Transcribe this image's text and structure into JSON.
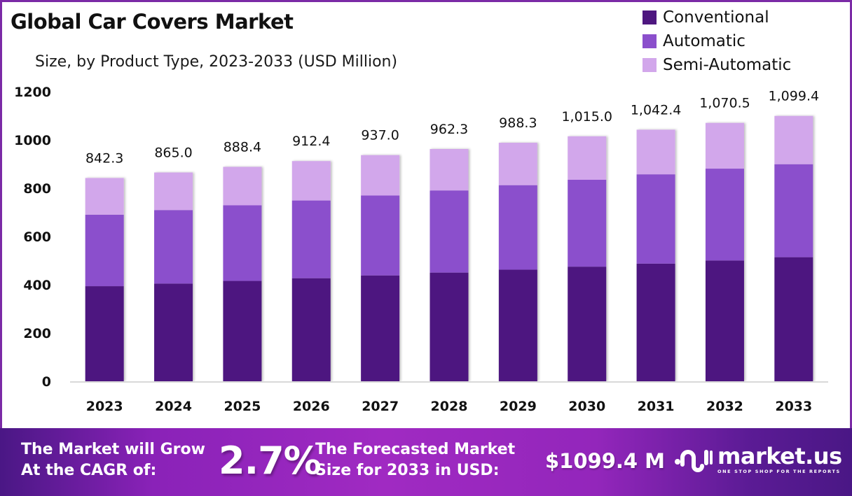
{
  "header": {
    "title": "Global Car Covers Market",
    "subtitle": "Size, by Product Type, 2023-2033 (USD Million)"
  },
  "legend": [
    {
      "label": "Conventional",
      "color": "#4e1780"
    },
    {
      "label": "Automatic",
      "color": "#8b4fcc"
    },
    {
      "label": "Semi-Automatic",
      "color": "#d2a7eb"
    }
  ],
  "chart_data": {
    "type": "bar",
    "stacked": true,
    "title": "Global Car Covers Market",
    "subtitle": "Size, by Product Type, 2023-2033 (USD Million)",
    "xlabel": "",
    "ylabel": "",
    "ylim": [
      0,
      1200
    ],
    "yticks": [
      0,
      200,
      400,
      600,
      800,
      1000,
      1200
    ],
    "grid": false,
    "legend_position": "top-right",
    "categories": [
      "2023",
      "2024",
      "2025",
      "2026",
      "2027",
      "2028",
      "2029",
      "2030",
      "2031",
      "2032",
      "2033"
    ],
    "series": [
      {
        "name": "Conventional",
        "color": "#4e1780",
        "values": [
          394.0,
          404.8,
          415.8,
          427.0,
          438.5,
          450.3,
          462.5,
          474.9,
          487.5,
          500.5,
          514.1
        ]
      },
      {
        "name": "Automatic",
        "color": "#8b4fcc",
        "values": [
          296.3,
          304.6,
          313.2,
          322.0,
          331.1,
          340.4,
          350.0,
          359.9,
          370.0,
          380.5,
          385.3
        ]
      },
      {
        "name": "Semi-Automatic",
        "color": "#d2a7eb",
        "values": [
          152.0,
          155.6,
          159.4,
          163.4,
          167.4,
          171.6,
          175.8,
          180.2,
          184.9,
          189.5,
          200.0
        ]
      }
    ],
    "totals": [
      842.3,
      865.0,
      888.4,
      912.4,
      937.0,
      962.3,
      988.3,
      1015.0,
      1042.4,
      1070.5,
      1099.4
    ],
    "total_labels": [
      "842.3",
      "865.0",
      "888.4",
      "912.4",
      "937.0",
      "962.3",
      "988.3",
      "1,015.0",
      "1,042.4",
      "1,070.5",
      "1,099.4"
    ]
  },
  "banner": {
    "cagr_text_line1": "The Market will Grow",
    "cagr_text_line2": "At the CAGR of:",
    "cagr_value": "2.7%",
    "forecast_text_line1": "The Forecasted Market",
    "forecast_text_line2": "Size for 2033 in USD:",
    "forecast_value": "$1099.4 M",
    "logo_name": "market.us",
    "logo_tagline": "ONE STOP SHOP FOR THE REPORTS"
  }
}
